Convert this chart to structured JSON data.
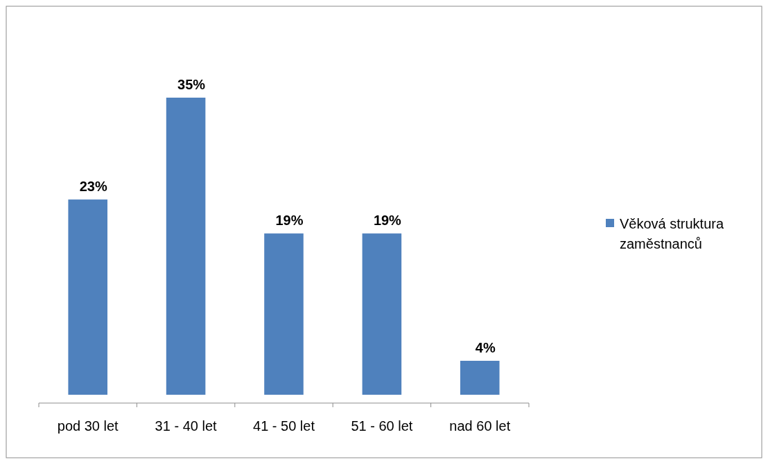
{
  "chart_data": {
    "type": "bar",
    "categories": [
      "pod 30 let",
      "31 - 40 let",
      "41 - 50 let",
      "51 - 60 let",
      "nad 60 let"
    ],
    "series": [
      {
        "name": "Věková struktura zaměstnanců",
        "color": "#4f81bd",
        "values": [
          23,
          35,
          19,
          19,
          4
        ],
        "value_labels": [
          "23%",
          "35%",
          "19%",
          "19%",
          "4%"
        ]
      }
    ],
    "legend": "right"
  }
}
